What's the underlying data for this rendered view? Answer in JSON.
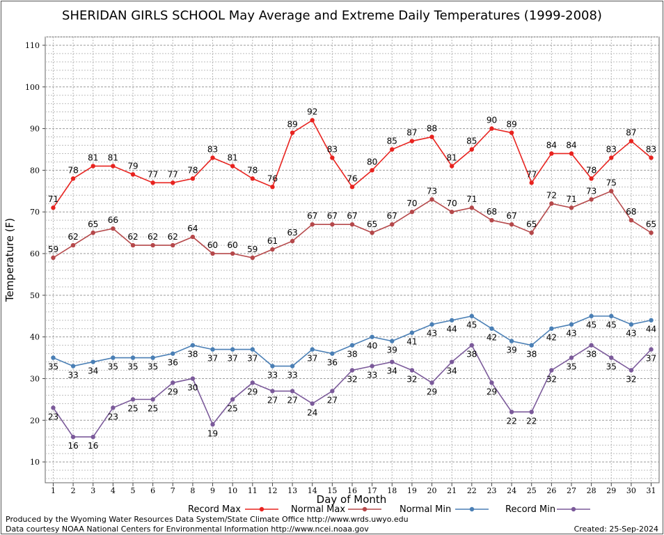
{
  "chart_data": {
    "type": "line",
    "title": "SHERIDAN GIRLS SCHOOL May Average and Extreme Daily Temperatures (1999-2008)",
    "xlabel": "Day of Month",
    "ylabel": "Temperature (F)",
    "xlim": [
      0.6,
      31.4
    ],
    "ylim": [
      5,
      112
    ],
    "y_ticks": [
      10,
      20,
      30,
      40,
      50,
      60,
      70,
      80,
      90,
      100,
      110
    ],
    "x": [
      1,
      2,
      3,
      4,
      5,
      6,
      7,
      8,
      9,
      10,
      11,
      12,
      13,
      14,
      15,
      16,
      17,
      18,
      19,
      20,
      21,
      22,
      23,
      24,
      25,
      26,
      27,
      28,
      29,
      30,
      31
    ],
    "grid": true,
    "legend_position": "bottom",
    "series": [
      {
        "name": "Record Max",
        "color": "#e8231f",
        "label_side": "above",
        "values": [
          71,
          78,
          81,
          81,
          79,
          77,
          77,
          78,
          83,
          81,
          78,
          76,
          89,
          92,
          83,
          76,
          80,
          85,
          87,
          88,
          81,
          85,
          90,
          89,
          77,
          84,
          84,
          78,
          83,
          87,
          83
        ]
      },
      {
        "name": "Normal Max",
        "color": "#b5484a",
        "label_side": "above",
        "values": [
          59,
          62,
          65,
          66,
          62,
          62,
          62,
          64,
          60,
          60,
          59,
          61,
          63,
          67,
          67,
          67,
          65,
          67,
          70,
          73,
          70,
          71,
          68,
          67,
          65,
          72,
          71,
          73,
          75,
          68,
          65
        ]
      },
      {
        "name": "Normal Min",
        "color": "#4a7fb5",
        "label_side": "below",
        "values": [
          35,
          33,
          34,
          35,
          35,
          35,
          36,
          38,
          37,
          37,
          37,
          33,
          33,
          37,
          36,
          38,
          40,
          39,
          41,
          43,
          44,
          45,
          42,
          39,
          38,
          42,
          43,
          45,
          45,
          43,
          44
        ]
      },
      {
        "name": "Record Min",
        "color": "#7b5a9a",
        "label_side": "below",
        "values": [
          23,
          16,
          16,
          23,
          25,
          25,
          29,
          30,
          19,
          25,
          29,
          27,
          27,
          24,
          27,
          32,
          33,
          34,
          32,
          29,
          34,
          38,
          29,
          22,
          22,
          32,
          35,
          38,
          35,
          32,
          37
        ]
      }
    ]
  },
  "footer": {
    "produced_by": "Produced by the Wyoming Water Resources Data System/State Climate Office http://www.wrds.uwyo.edu",
    "data_courtesy": "Data courtesy NOAA National Centers for Environmental Information http://www.ncei.noaa.gov",
    "created": "Created:  25-Sep-2024"
  }
}
